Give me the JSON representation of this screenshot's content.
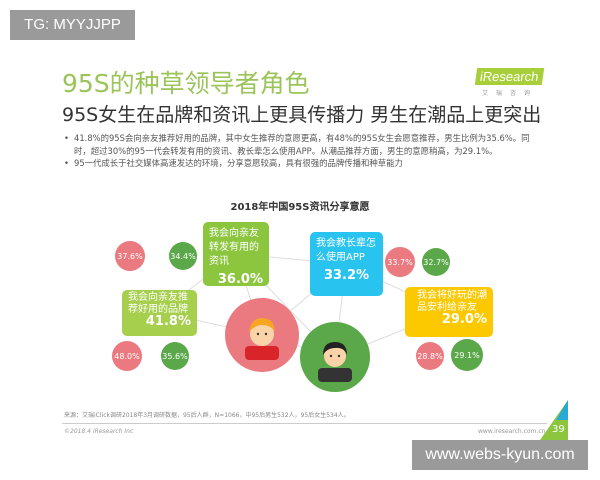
{
  "watermarks": {
    "top_left": "TG: MYYJJPP",
    "bottom_right": "www.webs-kyun.com"
  },
  "header": {
    "title": "95S的种草领导者角色",
    "subtitle": "95S女生在品牌和资讯上更具传播力 男生在潮品上更突出",
    "logo": "iResearch",
    "logo_sub": "艾瑞咨询"
  },
  "bullets": [
    "41.8%的95S会向亲友推荐好用的品牌，其中女生推荐的意愿更高，有48%的95S女生会愿意推荐，男生比例为35.6%。同时，超过30%的95一代会转发有用的资讯、教长辈怎么使用APP。从潮品推荐方面，男生的意愿稍高，为29.1%。",
    "95一代成长于社交媒体高速发达的环境，分享意愿较高，具有很强的品牌传播和种草能力"
  ],
  "chart": {
    "title": "2018年中国95S资讯分享意愿",
    "items": [
      {
        "label": "我会向亲友转发有用的资讯",
        "value": "36.0%",
        "female": "37.6%",
        "male": "34.4%"
      },
      {
        "label": "我会教长辈怎么使用APP",
        "value": "33.2%",
        "female": "33.7%",
        "male": "32.7%"
      },
      {
        "label": "我会向亲友推荐好用的品牌",
        "value": "41.8%",
        "female": "48.0%",
        "male": "35.6%"
      },
      {
        "label": "我会将好玩的潮品安利给亲友",
        "value": "29.0%",
        "female": "28.8%",
        "male": "29.1%"
      }
    ],
    "colors": {
      "female": "#ea7a7f",
      "male": "#5aa84a",
      "box_green": "#8cc63f",
      "box_blue": "#29c3ef",
      "box_yellow": "#fcc800"
    }
  },
  "footer": {
    "source": "来源：艾瑞iClick调研2018年3月调研数据，95后人群，N=1066，中95后男生532人，95后女生534人。",
    "copyright": "©2018.4 iResearch Inc",
    "url": "www.iresearch.com.cn",
    "page": "39"
  }
}
